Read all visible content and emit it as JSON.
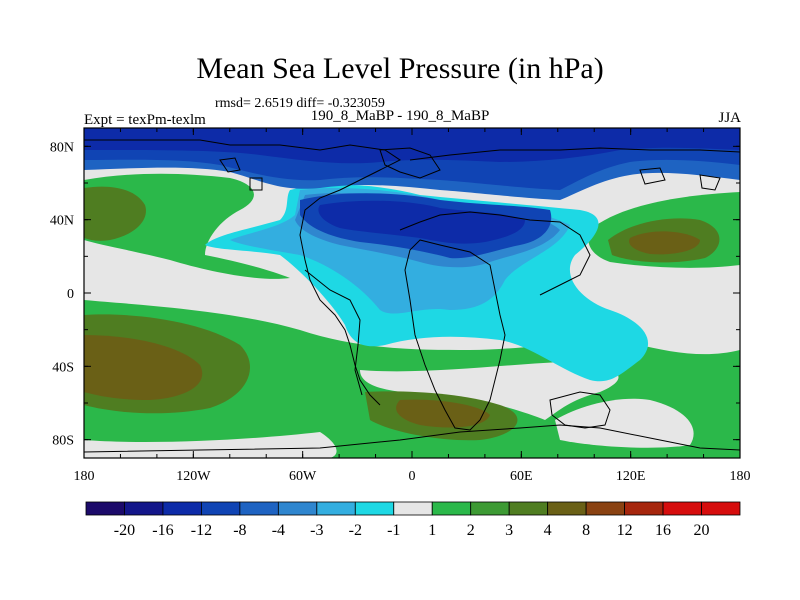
{
  "header": {
    "title": "Mean Sea Level Pressure (in hPa)",
    "subtitle": "rmsd= 2.6519 diff= -0.323059",
    "left_label": "Expt = texPm-texlm",
    "center_label": "190_8_MaBP - 190_8_MaBP",
    "right_label": "JJA"
  },
  "map": {
    "projection": "cylindrical-equidistant",
    "lon_range": [
      -180,
      180
    ],
    "lat_range": [
      -90,
      90
    ],
    "x_tick_labels": [
      "180",
      "120W",
      "60W",
      "0",
      "60E",
      "120E",
      "180"
    ],
    "y_tick_labels": [
      "80N",
      "40N",
      "0",
      "40S",
      "80S"
    ]
  },
  "colorbar": {
    "labels": [
      "-20",
      "-16",
      "-12",
      "-8",
      "-4",
      "-3",
      "-2",
      "-1",
      "1",
      "2",
      "3",
      "4",
      "8",
      "12",
      "16",
      "20"
    ],
    "colors": [
      "#1c0a6a",
      "#13168a",
      "#0d2ba8",
      "#1044b4",
      "#1e63c2",
      "#2f86cf",
      "#33aee0",
      "#1ed8e4",
      "#e6e6e6",
      "#2bb84a",
      "#3d9a34",
      "#4f7d21",
      "#6a6016",
      "#8a4212",
      "#a6260d",
      "#d60d0d"
    ]
  }
}
